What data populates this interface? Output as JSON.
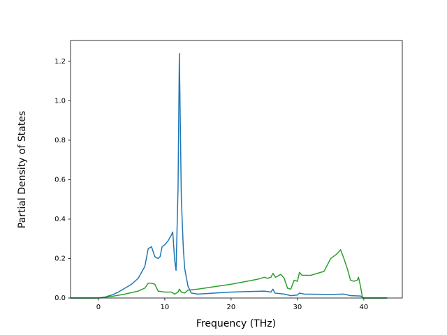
{
  "chart_data": {
    "type": "line",
    "xlabel": "Frequency (THz)",
    "ylabel": "Partial Density of States",
    "xlim": [
      -4.2,
      45.8
    ],
    "ylim": [
      0,
      1.306
    ],
    "xticks": [
      0,
      10,
      20,
      30,
      40
    ],
    "yticks": [
      {
        "value": 0,
        "label": "0.0"
      },
      {
        "value": 0.2,
        "label": "0.2"
      },
      {
        "value": 0.4,
        "label": "0.4"
      },
      {
        "value": 0.6,
        "label": "0.6"
      },
      {
        "value": 0.8,
        "label": "0.8"
      },
      {
        "value": 1.0,
        "label": "1.0"
      },
      {
        "value": 1.2,
        "label": "1.2"
      }
    ],
    "series": [
      {
        "color": "#1f77b4",
        "x": [
          -4.2,
          0,
          1,
          2,
          3,
          4,
          5,
          6,
          7,
          7.5,
          8,
          8.5,
          9,
          9.3,
          9.6,
          10,
          10.5,
          11,
          11.2,
          11.5,
          11.7,
          12,
          12.2,
          12.5,
          12.8,
          13,
          13.5,
          14,
          15,
          20,
          25,
          26,
          26.3,
          26.6,
          28,
          29,
          30,
          30.3,
          31,
          35,
          37,
          38,
          39.5,
          40,
          43.5
        ],
        "values": [
          0,
          0,
          0.005,
          0.015,
          0.03,
          0.05,
          0.07,
          0.1,
          0.16,
          0.25,
          0.26,
          0.21,
          0.2,
          0.21,
          0.26,
          0.27,
          0.29,
          0.32,
          0.335,
          0.19,
          0.14,
          0.55,
          1.24,
          0.5,
          0.25,
          0.15,
          0.06,
          0.025,
          0.02,
          0.03,
          0.035,
          0.03,
          0.045,
          0.025,
          0.02,
          0.012,
          0.015,
          0.025,
          0.02,
          0.018,
          0.02,
          0.012,
          0.01,
          0,
          0
        ]
      },
      {
        "color": "#2ca02c",
        "x": [
          -4.2,
          0,
          2,
          4,
          6,
          7,
          7.5,
          8,
          8.5,
          9,
          10,
          11,
          11.5,
          12,
          12.2,
          12.5,
          13,
          13.5,
          15,
          20,
          24,
          25,
          25.5,
          26,
          26.3,
          26.7,
          27.5,
          28,
          28.5,
          29,
          29.5,
          30,
          30.3,
          30.7,
          32,
          34,
          35,
          36,
          36.5,
          37,
          37.5,
          38,
          38.5,
          39,
          39.2,
          39.5,
          39.8,
          43.5
        ],
        "values": [
          0,
          0,
          0.008,
          0.02,
          0.035,
          0.05,
          0.075,
          0.075,
          0.07,
          0.035,
          0.03,
          0.03,
          0.02,
          0.03,
          0.045,
          0.03,
          0.025,
          0.04,
          0.045,
          0.07,
          0.095,
          0.105,
          0.1,
          0.105,
          0.125,
          0.105,
          0.12,
          0.1,
          0.05,
          0.045,
          0.09,
          0.085,
          0.13,
          0.115,
          0.115,
          0.135,
          0.2,
          0.225,
          0.245,
          0.2,
          0.15,
          0.09,
          0.085,
          0.09,
          0.105,
          0.06,
          0,
          0
        ]
      }
    ]
  }
}
